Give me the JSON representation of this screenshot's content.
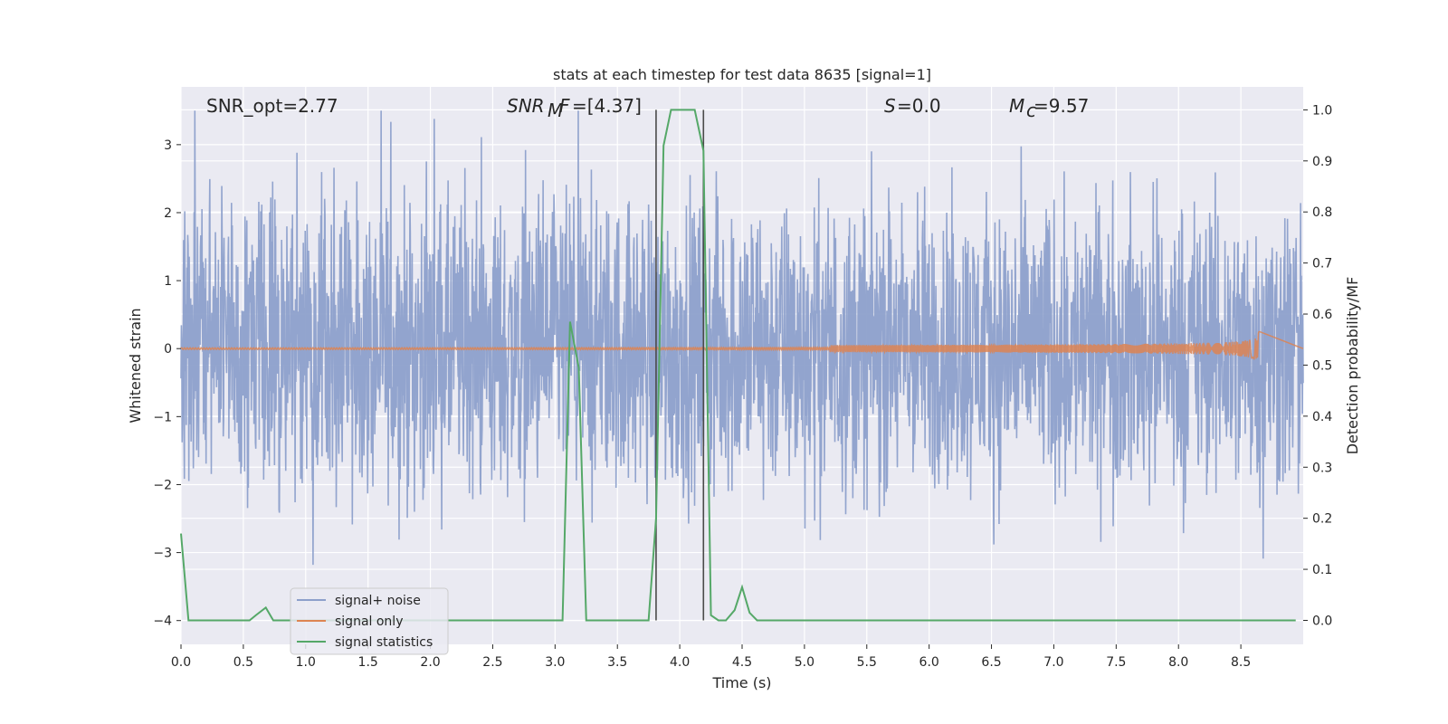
{
  "chart_data": {
    "type": "line",
    "title": "stats at each timestep for test data 8635 [signal=1]",
    "xlabel": "Time (s)",
    "ylabel": "Whitened strain",
    "y2label": "Detection probability/MF",
    "xlim": [
      0.0,
      9.0
    ],
    "ylim": [
      -4.35,
      3.85
    ],
    "y2lim": [
      -0.047,
      1.045
    ],
    "x_ticks": [
      "0.0",
      "0.5",
      "1.0",
      "1.5",
      "2.0",
      "2.5",
      "3.0",
      "3.5",
      "4.0",
      "4.5",
      "5.0",
      "5.5",
      "6.0",
      "6.5",
      "7.0",
      "7.5",
      "8.0",
      "8.5"
    ],
    "x_tick_values": [
      0,
      0.5,
      1,
      1.5,
      2,
      2.5,
      3,
      3.5,
      4,
      4.5,
      5,
      5.5,
      6,
      6.5,
      7,
      7.5,
      8,
      8.5
    ],
    "y_ticks": [
      "−4",
      "−3",
      "−2",
      "−1",
      "0",
      "1",
      "2",
      "3"
    ],
    "y_tick_values": [
      -4,
      -3,
      -2,
      -1,
      0,
      1,
      2,
      3
    ],
    "y2_ticks": [
      "0.0",
      "0.1",
      "0.2",
      "0.3",
      "0.4",
      "0.5",
      "0.6",
      "0.7",
      "0.8",
      "0.9",
      "1.0"
    ],
    "y2_tick_values": [
      0,
      0.1,
      0.2,
      0.3,
      0.4,
      0.5,
      0.6,
      0.7,
      0.8,
      0.9,
      1.0
    ],
    "grid": true,
    "legend_position": "lower-left",
    "annotations": {
      "snr_opt": "SNR_opt=2.77",
      "snr_mf": "=[4.37]",
      "s_value": "=0.0",
      "mc_value": "=9.57"
    },
    "vertical_lines_x": [
      3.81,
      4.19
    ],
    "series": [
      {
        "name": "signal+ noise",
        "color": "#8da0cb",
        "axis": "left",
        "kind": "noise",
        "x_range": [
          0.0,
          9.0
        ],
        "typical_envelope": [
          -1.8,
          1.8
        ],
        "max_peaks": 3.5,
        "min_troughs": -4.0
      },
      {
        "name": "signal only",
        "color": "#dd8452",
        "axis": "left",
        "kind": "chirp",
        "x_range": [
          0.0,
          8.65
        ],
        "peak_amplitude": 0.28,
        "merger_time": 8.65
      },
      {
        "name": "signal statistics",
        "color": "#55a868",
        "axis": "right",
        "x": [
          0.0,
          0.06,
          0.1,
          0.2,
          0.3,
          0.4,
          0.5,
          0.55,
          0.6,
          0.68,
          0.74,
          0.8,
          0.9,
          1.0,
          1.5,
          2.0,
          2.5,
          3.0,
          3.06,
          3.12,
          3.19,
          3.25,
          3.3,
          3.5,
          3.7,
          3.75,
          3.81,
          3.87,
          3.93,
          4.0,
          4.06,
          4.12,
          4.19,
          4.25,
          4.31,
          4.37,
          4.44,
          4.5,
          4.56,
          4.62,
          4.7,
          5.0,
          6.0,
          7.0,
          8.0,
          8.5,
          8.94
        ],
        "values": [
          0.17,
          0.0,
          0.0,
          0.0,
          0.0,
          0.0,
          0.0,
          0.0,
          0.01,
          0.025,
          0.0,
          0.0,
          0.0,
          0.0,
          0.0,
          0.0,
          0.0,
          0.0,
          0.0,
          0.585,
          0.495,
          0.0,
          0.0,
          0.0,
          0.0,
          0.0,
          0.2,
          0.93,
          1.0,
          1.0,
          1.0,
          1.0,
          0.92,
          0.01,
          0.0,
          0.0,
          0.02,
          0.065,
          0.015,
          0.0,
          0.0,
          0.0,
          0.0,
          0.0,
          0.0,
          0.0,
          0.0
        ]
      }
    ]
  }
}
